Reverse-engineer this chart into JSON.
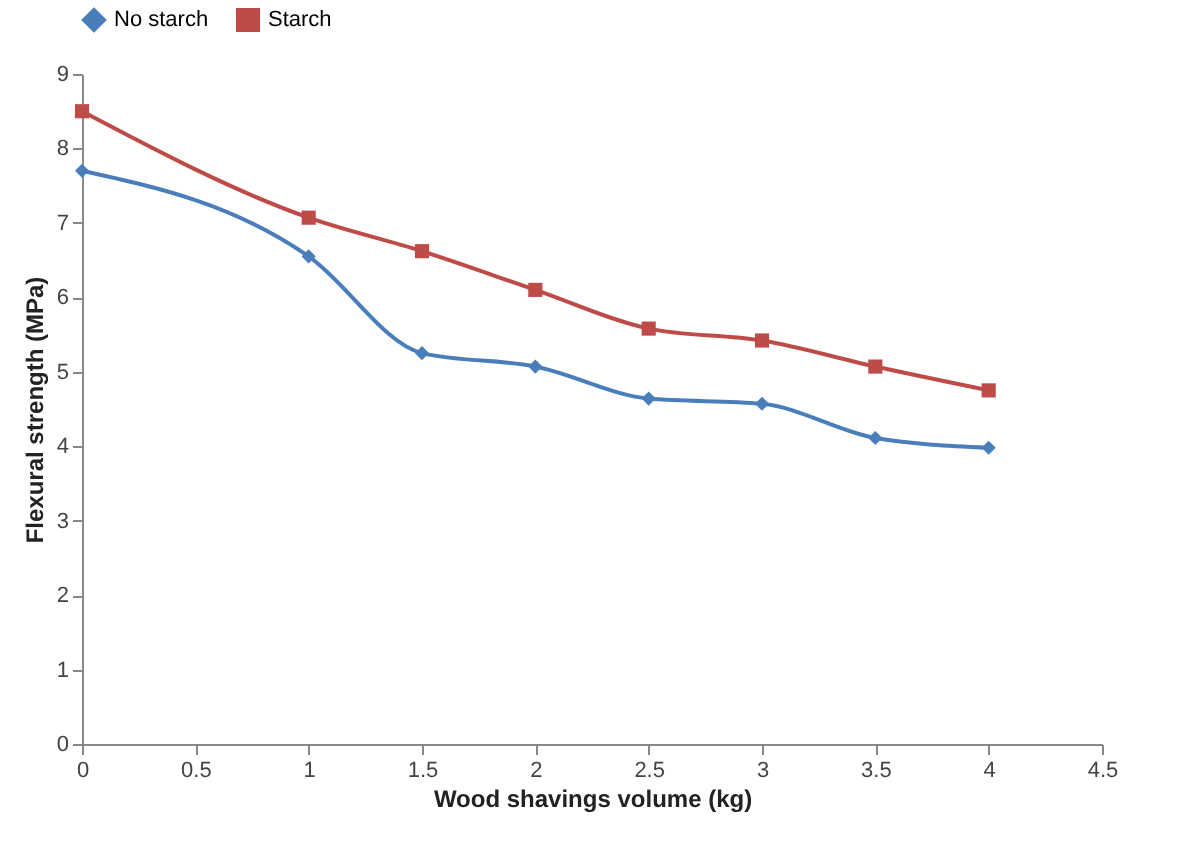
{
  "chart_data": {
    "type": "line",
    "xlabel": "Wood shavings volume (kg)",
    "ylabel": "Flexural strength (MPa)",
    "x": [
      0,
      1,
      1.5,
      2,
      2.5,
      3,
      3.5,
      4
    ],
    "series": [
      {
        "name": "No starch",
        "color": "#4a7ebb",
        "marker": "diamond",
        "values": [
          7.7,
          6.55,
          5.25,
          5.07,
          4.64,
          4.57,
          4.11,
          3.98
        ]
      },
      {
        "name": "Starch",
        "color": "#be4b48",
        "marker": "square",
        "values": [
          8.5,
          7.07,
          6.62,
          6.1,
          5.58,
          5.42,
          5.07,
          4.75
        ]
      }
    ],
    "xlim": [
      0,
      4.5
    ],
    "xticks": [
      0,
      0.5,
      1,
      1.5,
      2,
      2.5,
      3,
      3.5,
      4,
      4.5
    ],
    "ylim": [
      0,
      9
    ],
    "yticks": [
      0,
      1,
      2,
      3,
      4,
      5,
      6,
      7,
      8,
      9
    ],
    "grid": false,
    "legend": "top"
  }
}
